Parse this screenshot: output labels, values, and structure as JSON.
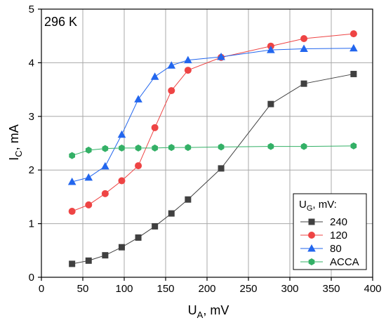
{
  "chart_data": {
    "type": "line",
    "annotation": "296 K",
    "xlabel": {
      "main": "U",
      "sub": "A",
      "rest": ", mV"
    },
    "ylabel": {
      "main": "I",
      "sub": "C",
      "rest": ", mA"
    },
    "xlim": [
      0,
      400
    ],
    "ylim": [
      0,
      5
    ],
    "xticks": [
      0,
      50,
      100,
      150,
      200,
      250,
      300,
      350,
      400
    ],
    "yticks": [
      0,
      1,
      2,
      3,
      4,
      5
    ],
    "grid": true,
    "legend_position": "bottom-right",
    "legend_title": {
      "main": "U",
      "sub": "G",
      "rest": ", mV:"
    },
    "series": [
      {
        "name": "240",
        "color": "#404040",
        "marker": "square",
        "x": [
          37,
          57,
          77,
          97,
          117,
          137,
          157,
          177,
          217,
          277,
          317,
          377
        ],
        "y": [
          0.25,
          0.31,
          0.41,
          0.56,
          0.74,
          0.95,
          1.19,
          1.45,
          2.03,
          3.23,
          3.61,
          3.79
        ]
      },
      {
        "name": "120",
        "color": "#ee4444",
        "marker": "circle",
        "x": [
          37,
          57,
          77,
          97,
          117,
          137,
          157,
          177,
          217,
          277,
          317,
          377
        ],
        "y": [
          1.23,
          1.35,
          1.56,
          1.8,
          2.08,
          2.79,
          3.48,
          3.86,
          4.1,
          4.31,
          4.45,
          4.54
        ]
      },
      {
        "name": "80",
        "color": "#2266ee",
        "marker": "triangle",
        "x": [
          37,
          57,
          77,
          97,
          117,
          137,
          157,
          177,
          217,
          277,
          317,
          377
        ],
        "y": [
          1.78,
          1.86,
          2.07,
          2.66,
          3.32,
          3.74,
          3.95,
          4.05,
          4.11,
          4.24,
          4.26,
          4.27
        ]
      },
      {
        "name": "ACCA",
        "color": "#33b066",
        "marker": "hexagon",
        "x": [
          37,
          57,
          77,
          97,
          117,
          137,
          157,
          177,
          217,
          277,
          317,
          377
        ],
        "y": [
          2.27,
          2.37,
          2.4,
          2.41,
          2.41,
          2.41,
          2.42,
          2.42,
          2.43,
          2.44,
          2.44,
          2.45
        ]
      }
    ]
  }
}
